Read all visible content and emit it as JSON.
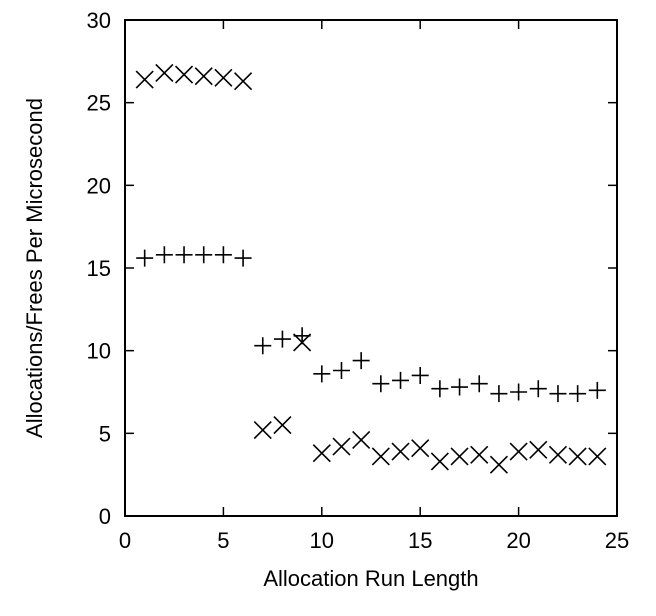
{
  "chart_data": {
    "type": "scatter",
    "title": "",
    "xlabel": "Allocation Run Length",
    "ylabel": "Allocations/Frees Per Microsecond",
    "xlim": [
      0,
      25
    ],
    "ylim": [
      0,
      30
    ],
    "x_ticks": [
      0,
      5,
      10,
      15,
      20,
      25
    ],
    "y_ticks": [
      0,
      5,
      10,
      15,
      20,
      25,
      30
    ],
    "grid": false,
    "legend": "none",
    "series": [
      {
        "marker": "plus",
        "x": [
          1,
          2,
          3,
          4,
          5,
          6,
          7,
          8,
          9,
          10,
          11,
          12,
          13,
          14,
          15,
          16,
          17,
          18,
          19,
          20,
          21,
          22,
          23,
          24
        ],
        "y": [
          15.6,
          15.8,
          15.8,
          15.8,
          15.8,
          15.6,
          10.3,
          10.7,
          10.9,
          8.6,
          8.8,
          9.4,
          8.0,
          8.2,
          8.5,
          7.7,
          7.8,
          8.0,
          7.4,
          7.5,
          7.7,
          7.4,
          7.4,
          7.6
        ]
      },
      {
        "marker": "cross",
        "x": [
          1,
          2,
          3,
          4,
          5,
          6,
          7,
          8,
          9,
          10,
          11,
          12,
          13,
          14,
          15,
          16,
          17,
          18,
          19,
          20,
          21,
          22,
          23,
          24
        ],
        "y": [
          26.4,
          26.8,
          26.7,
          26.6,
          26.5,
          26.3,
          5.2,
          5.5,
          10.5,
          3.8,
          4.2,
          4.6,
          3.6,
          3.9,
          4.1,
          3.3,
          3.6,
          3.7,
          3.1,
          3.9,
          4.0,
          3.7,
          3.6,
          3.6
        ]
      }
    ]
  }
}
